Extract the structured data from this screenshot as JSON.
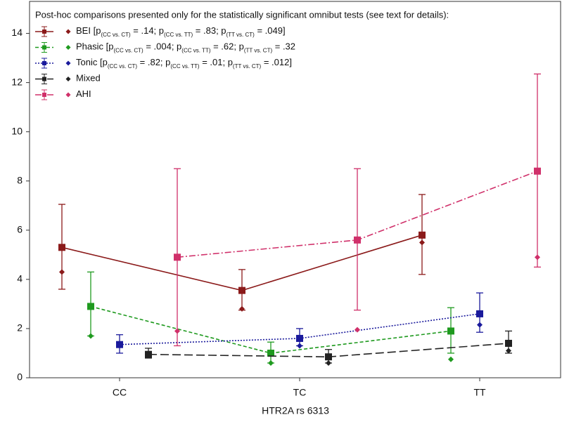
{
  "chart_data": {
    "type": "errorbar-line",
    "legend_title": "Post-hoc comparisons presented only for the statistically significant omnibut tests (see text for details):",
    "xlabel": "HTR2A rs 6313",
    "categories": [
      "CC",
      "TC",
      "TT"
    ],
    "ylim": [
      0,
      15.3
    ],
    "yticks": [
      0,
      2,
      4,
      6,
      8,
      10,
      12,
      14
    ],
    "series": [
      {
        "name": "BEI",
        "color": "#8b1a1a",
        "dash": "none",
        "note": [
          {
            "text": " [p"
          },
          {
            "sub": "(CC vs. CT)"
          },
          {
            "text": " = .14; p"
          },
          {
            "sub": "(CC vs. TT)"
          },
          {
            "text": " = .83; p"
          },
          {
            "sub": "(TT vs. CT)"
          },
          {
            "text": " = .049]"
          }
        ],
        "values": [
          5.3,
          3.55,
          5.8
        ],
        "low": [
          3.6,
          2.75,
          4.2
        ],
        "high": [
          7.05,
          4.4,
          7.45
        ],
        "points": [
          4.3,
          2.8,
          5.5
        ]
      },
      {
        "name": "Phasic",
        "color": "#1f9a1f",
        "dash": "5,3",
        "note": [
          {
            "text": " [p"
          },
          {
            "sub": "(CC vs. CT)"
          },
          {
            "text": " = .004; p"
          },
          {
            "sub": "(CC vs. TT)"
          },
          {
            "text": " = .62; p"
          },
          {
            "sub": "(TT vs. CT)"
          },
          {
            "text": " = .32"
          }
        ],
        "values": [
          2.9,
          1.0,
          1.9
        ],
        "low": [
          1.7,
          0.6,
          1.0
        ],
        "high": [
          4.3,
          1.45,
          2.85
        ],
        "points": [
          1.7,
          0.6,
          0.75
        ]
      },
      {
        "name": "Tonic",
        "color": "#1a1a9c",
        "dash": "2,2",
        "note": [
          {
            "text": " [p"
          },
          {
            "sub": "(CC vs. CT)"
          },
          {
            "text": " = .82; p"
          },
          {
            "sub": "(CC vs. TT)"
          },
          {
            "text": " = .01; p"
          },
          {
            "sub": "(TT vs. CT)"
          },
          {
            "text": " = .012]"
          }
        ],
        "values": [
          1.35,
          1.6,
          2.6
        ],
        "low": [
          1.0,
          1.3,
          1.85
        ],
        "high": [
          1.75,
          2.0,
          3.45
        ],
        "points": [
          1.35,
          1.3,
          2.15
        ]
      },
      {
        "name": "Mixed",
        "color": "#222222",
        "dash": "12,5",
        "values": [
          0.95,
          0.85,
          1.4
        ],
        "low": [
          0.8,
          0.6,
          1.0
        ],
        "high": [
          1.2,
          1.15,
          1.9
        ],
        "points": [
          0.9,
          0.6,
          1.1
        ]
      },
      {
        "name": "AHI",
        "color": "#d0306a",
        "dash": "9,3,2,3",
        "values": [
          4.9,
          5.6,
          8.4
        ],
        "low": [
          1.3,
          2.75,
          4.5
        ],
        "high": [
          8.5,
          8.5,
          12.35
        ],
        "points": [
          1.9,
          1.95,
          4.9
        ]
      }
    ]
  }
}
